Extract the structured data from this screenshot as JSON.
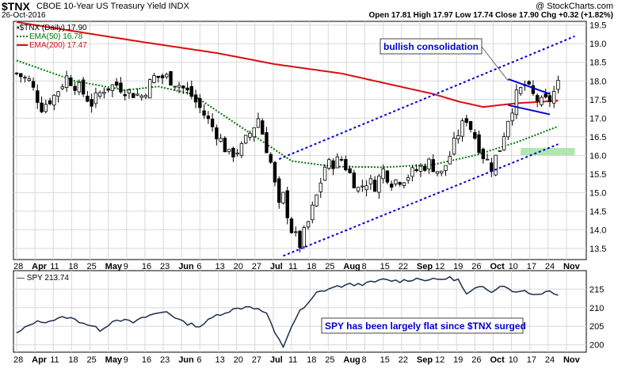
{
  "header": {
    "ticker": "$TNX",
    "name": "CBOE 10-Year US Treasury Yield INDX",
    "date": "26-Oct-2016",
    "brand": "@ StockCharts.com",
    "ohlc_text": "Open 17.81  High 17.97  Low 17.74  Close 17.90  Chg +0.32 (+1.82%)"
  },
  "chart_data": [
    {
      "type": "candlestick",
      "title": "$TNX (Daily) 17.90",
      "legend": [
        {
          "label": "EMA(50) 16.78",
          "color": "#007a00",
          "style": "dotted"
        },
        {
          "label": "EMA(200) 17.47",
          "color": "#d81010",
          "style": "solid"
        }
      ],
      "ylim": [
        13.2,
        19.6
      ],
      "y_ticks": [
        "13.5",
        "14.0",
        "14.5",
        "15.0",
        "15.5",
        "16.0",
        "16.5",
        "17.0",
        "17.5",
        "18.0",
        "18.5",
        "19.0",
        "19.5"
      ],
      "x_labels": [
        "28",
        "Apr",
        "11",
        "18",
        "25",
        "May",
        "9",
        "16",
        "23",
        "Jun",
        "6",
        "13",
        "20",
        "27",
        "Jul",
        "11",
        "18",
        "25",
        "Aug",
        "8",
        "15",
        "22",
        "Sep",
        "12",
        "19",
        "26",
        "Oct",
        "10",
        "17",
        "24",
        "Nov"
      ],
      "close_anchors": [
        [
          0,
          18.2
        ],
        [
          3,
          18.0
        ],
        [
          6,
          17.3
        ],
        [
          9,
          17.6
        ],
        [
          12,
          18.1
        ],
        [
          15,
          17.8
        ],
        [
          18,
          17.4
        ],
        [
          21,
          17.8
        ],
        [
          24,
          17.9
        ],
        [
          27,
          17.7
        ],
        [
          30,
          17.6
        ],
        [
          33,
          18.1
        ],
        [
          36,
          18.1
        ],
        [
          39,
          17.9
        ],
        [
          42,
          17.6
        ],
        [
          45,
          17.1
        ],
        [
          48,
          16.6
        ],
        [
          51,
          16.0
        ],
        [
          54,
          16.2
        ],
        [
          56,
          16.6
        ],
        [
          58,
          17.0
        ],
        [
          61,
          15.8
        ],
        [
          63,
          14.6
        ],
        [
          64,
          14.9
        ],
        [
          66,
          14.0
        ],
        [
          68,
          13.6
        ],
        [
          70,
          14.2
        ],
        [
          72,
          14.9
        ],
        [
          74,
          15.7
        ],
        [
          76,
          15.8
        ],
        [
          78,
          15.9
        ],
        [
          80,
          15.5
        ],
        [
          82,
          15.1
        ],
        [
          84,
          15.3
        ],
        [
          86,
          15.2
        ],
        [
          88,
          15.6
        ],
        [
          90,
          15.3
        ],
        [
          93,
          15.4
        ],
        [
          96,
          15.6
        ],
        [
          99,
          15.8
        ],
        [
          102,
          15.5
        ],
        [
          104,
          16.0
        ],
        [
          106,
          16.6
        ],
        [
          108,
          17.0
        ],
        [
          110,
          16.5
        ],
        [
          112,
          16.0
        ],
        [
          114,
          15.7
        ],
        [
          116,
          16.2
        ],
        [
          118,
          17.0
        ],
        [
          120,
          17.6
        ],
        [
          122,
          17.9
        ],
        [
          124,
          17.6
        ],
        [
          126,
          17.4
        ],
        [
          128,
          17.5
        ],
        [
          130,
          17.9
        ]
      ],
      "ema50": [
        [
          0,
          18.55
        ],
        [
          14,
          18.0
        ],
        [
          26,
          17.75
        ],
        [
          34,
          17.85
        ],
        [
          42,
          17.65
        ],
        [
          52,
          16.9
        ],
        [
          58,
          16.45
        ],
        [
          66,
          15.85
        ],
        [
          76,
          15.7
        ],
        [
          88,
          15.68
        ],
        [
          100,
          15.75
        ],
        [
          110,
          16.0
        ],
        [
          120,
          16.35
        ],
        [
          130,
          16.78
        ]
      ],
      "ema200": [
        [
          0,
          19.58
        ],
        [
          30,
          19.05
        ],
        [
          48,
          18.75
        ],
        [
          62,
          18.45
        ],
        [
          78,
          18.2
        ],
        [
          92,
          17.85
        ],
        [
          100,
          17.65
        ],
        [
          106,
          17.45
        ],
        [
          112,
          17.3
        ],
        [
          120,
          17.4
        ],
        [
          130,
          17.47
        ]
      ],
      "annotations": [
        {
          "text": "bullish consolidation",
          "color": "#0000cc"
        },
        {
          "type": "parallel-channel",
          "color": "#0000dd",
          "style": "dotted",
          "points": [
            [
              64,
              13.3
            ],
            [
              130,
              16.3
            ]
          ],
          "upper": [
            [
              63,
              15.9
            ],
            [
              134,
              19.2
            ]
          ]
        },
        {
          "type": "pennant",
          "color": "#0000dd",
          "upper": [
            [
              118,
              18.05
            ],
            [
              128,
              17.65
            ]
          ],
          "lower": [
            [
              118,
              17.35
            ],
            [
              128,
              17.1
            ]
          ]
        },
        {
          "type": "support-zone",
          "color": "#66cc66",
          "y_range": [
            16.0,
            16.2
          ],
          "x_range": [
            121,
            134
          ]
        }
      ]
    },
    {
      "type": "line",
      "title": "SPY 213.74",
      "ylim": [
        198,
        220
      ],
      "y_ticks": [
        "200",
        "205",
        "210",
        "215"
      ],
      "values_anchors": [
        [
          0,
          203
        ],
        [
          4,
          206
        ],
        [
          8,
          206.5
        ],
        [
          12,
          207.5
        ],
        [
          16,
          206
        ],
        [
          20,
          204
        ],
        [
          24,
          207
        ],
        [
          28,
          206
        ],
        [
          32,
          208
        ],
        [
          36,
          209
        ],
        [
          40,
          206
        ],
        [
          44,
          205
        ],
        [
          48,
          208
        ],
        [
          52,
          209.5
        ],
        [
          56,
          210.5
        ],
        [
          60,
          208.5
        ],
        [
          62,
          203
        ],
        [
          64,
          199.5
        ],
        [
          66,
          205
        ],
        [
          68,
          209
        ],
        [
          70,
          211
        ],
        [
          72,
          214
        ],
        [
          76,
          215.5
        ],
        [
          80,
          216.2
        ],
        [
          84,
          216.5
        ],
        [
          88,
          217.5
        ],
        [
          92,
          217.2
        ],
        [
          96,
          217.8
        ],
        [
          100,
          217.5
        ],
        [
          104,
          218
        ],
        [
          106,
          217.5
        ],
        [
          108,
          213.5
        ],
        [
          110,
          215
        ],
        [
          112,
          215.5
        ],
        [
          114,
          214.5
        ],
        [
          116,
          216
        ],
        [
          118,
          215.5
        ],
        [
          120,
          214
        ],
        [
          122,
          214.8
        ],
        [
          124,
          213.5
        ],
        [
          126,
          214
        ],
        [
          128,
          214.5
        ],
        [
          130,
          213.7
        ]
      ],
      "annotations": [
        {
          "text": "SPY has been largely flat since $TNX surged",
          "color": "#0000cc"
        }
      ]
    }
  ]
}
